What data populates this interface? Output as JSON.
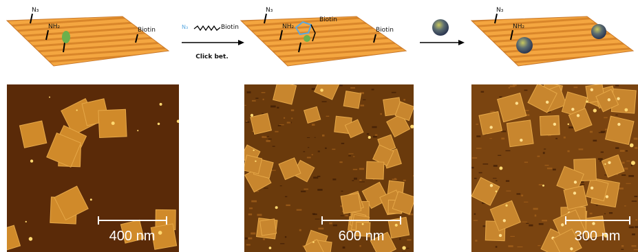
{
  "schemes": [
    {
      "labels": [
        "N₃",
        "NH₂",
        "Biotin"
      ]
    },
    {
      "labels": [
        "N₃",
        "NH₂",
        "Biotin",
        "Biotin"
      ]
    },
    {
      "labels": [
        "N₃",
        "NH₂"
      ]
    }
  ],
  "reactions": [
    {
      "reagent": [
        "N₃",
        "Biotin"
      ],
      "caption": "Click bet."
    }
  ],
  "afm_images": [
    {
      "scale_bar": "400 nm"
    },
    {
      "scale_bar": "600 nm"
    },
    {
      "scale_bar": "300 nm"
    }
  ]
}
